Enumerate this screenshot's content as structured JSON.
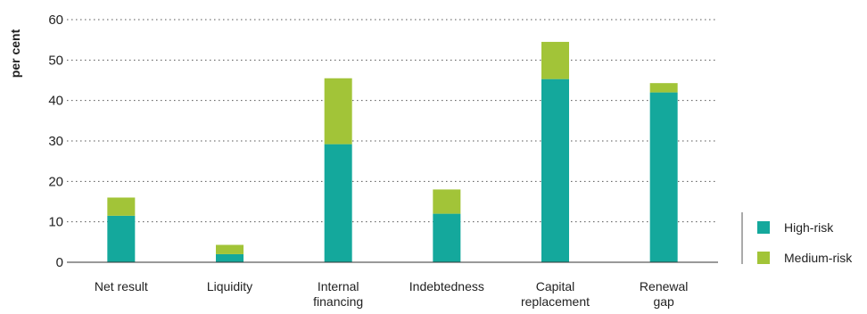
{
  "chart_data": {
    "type": "bar",
    "stacked": true,
    "title": "",
    "xlabel": "",
    "ylabel": "per cent",
    "ylim": [
      0,
      60
    ],
    "yticks": [
      0,
      10,
      20,
      30,
      40,
      50,
      60
    ],
    "grid": true,
    "legend_position": "bottom-right",
    "categories": [
      [
        "Net result"
      ],
      [
        "Liquidity"
      ],
      [
        "Internal",
        "financing"
      ],
      [
        "Indebtedness"
      ],
      [
        "Capital",
        "replacement"
      ],
      [
        "Renewal",
        "gap"
      ]
    ],
    "series": [
      {
        "name": "High-risk",
        "color": "#14a89c",
        "values": [
          11.5,
          2,
          29.2,
          12,
          45.3,
          42
        ]
      },
      {
        "name": "Medium-risk",
        "color": "#a2c438",
        "values": [
          4.5,
          2.3,
          16.3,
          6,
          9.2,
          2.3
        ]
      }
    ]
  }
}
